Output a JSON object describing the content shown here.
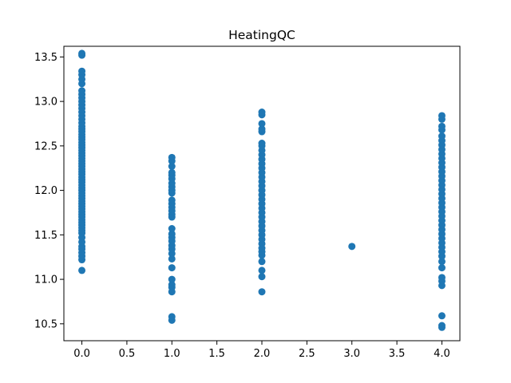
{
  "chart_data": {
    "type": "scatter",
    "title": "HeatingQC",
    "xlabel": "",
    "ylabel": "",
    "xlim": [
      -0.2,
      4.2
    ],
    "ylim": [
      10.31,
      13.62
    ],
    "x_ticks": [
      0.0,
      0.5,
      1.0,
      1.5,
      2.0,
      2.5,
      3.0,
      3.5,
      4.0
    ],
    "x_tick_labels": [
      "0.0",
      "0.5",
      "1.0",
      "1.5",
      "2.0",
      "2.5",
      "3.0",
      "3.5",
      "4.0"
    ],
    "y_ticks": [
      10.5,
      11.0,
      11.5,
      12.0,
      12.5,
      13.0,
      13.5
    ],
    "y_tick_labels": [
      "10.5",
      "11.0",
      "11.5",
      "12.0",
      "12.5",
      "13.0",
      "13.5"
    ],
    "grid": false,
    "marker_color": "#1f77b4",
    "series": [
      {
        "x": 0,
        "y": [
          11.1,
          11.22,
          11.26,
          11.3,
          11.34,
          11.37,
          11.42,
          11.47,
          11.52,
          11.55,
          11.58,
          11.61,
          11.64,
          11.67,
          11.7,
          11.73,
          11.76,
          11.79,
          11.82,
          11.85,
          11.88,
          11.91,
          11.94,
          11.97,
          12.0,
          12.03,
          12.06,
          12.09,
          12.12,
          12.15,
          12.18,
          12.21,
          12.24,
          12.27,
          12.3,
          12.33,
          12.36,
          12.39,
          12.42,
          12.45,
          12.48,
          12.51,
          12.54,
          12.57,
          12.6,
          12.63,
          12.66,
          12.69,
          12.72,
          12.76,
          12.8,
          12.84,
          12.88,
          12.92,
          12.96,
          13.0,
          13.04,
          13.08,
          13.12,
          13.2,
          13.25,
          13.3,
          13.34,
          13.52,
          13.54
        ]
      },
      {
        "x": 1,
        "y": [
          10.54,
          10.58,
          10.86,
          10.91,
          10.94,
          11.0,
          11.13,
          11.23,
          11.29,
          11.34,
          11.38,
          11.43,
          11.47,
          11.51,
          11.57,
          11.7,
          11.73,
          11.77,
          11.81,
          11.85,
          11.89,
          11.97,
          12.0,
          12.04,
          12.08,
          12.13,
          12.17,
          12.2,
          12.27,
          12.33,
          12.37
        ]
      },
      {
        "x": 2,
        "y": [
          10.86,
          11.03,
          11.1,
          11.2,
          11.27,
          11.31,
          11.35,
          11.4,
          11.45,
          11.5,
          11.55,
          11.6,
          11.65,
          11.7,
          11.75,
          11.8,
          11.85,
          11.9,
          11.95,
          12.0,
          12.05,
          12.1,
          12.15,
          12.2,
          12.25,
          12.3,
          12.35,
          12.4,
          12.45,
          12.5,
          12.53,
          12.66,
          12.69,
          12.75,
          12.85,
          12.88
        ]
      },
      {
        "x": 3,
        "y": [
          11.37
        ]
      },
      {
        "x": 4,
        "y": [
          10.46,
          10.48,
          10.59,
          10.93,
          10.98,
          11.02,
          11.13,
          11.2,
          11.26,
          11.31,
          11.36,
          11.41,
          11.46,
          11.51,
          11.56,
          11.61,
          11.66,
          11.71,
          11.76,
          11.81,
          11.86,
          11.91,
          11.96,
          12.01,
          12.06,
          12.11,
          12.16,
          12.21,
          12.26,
          12.31,
          12.36,
          12.41,
          12.46,
          12.51,
          12.56,
          12.61,
          12.68,
          12.72,
          12.8,
          12.84
        ]
      }
    ]
  }
}
